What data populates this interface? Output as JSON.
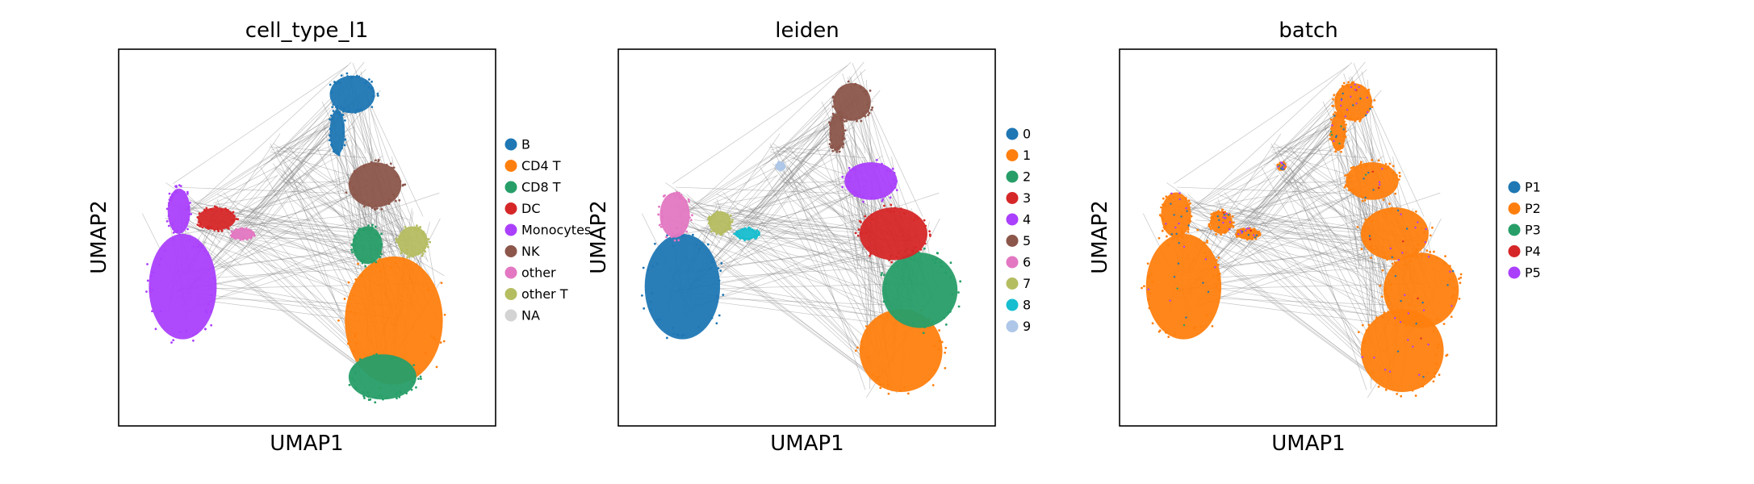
{
  "figure": {
    "panels": [
      {
        "title": "cell_type_l1",
        "xlabel": "UMAP1",
        "ylabel": "UMAP2",
        "legend": [
          {
            "label": "B",
            "color": "#1f77b4"
          },
          {
            "label": "CD4 T",
            "color": "#ff7f0e"
          },
          {
            "label": "CD8 T",
            "color": "#279e68"
          },
          {
            "label": "DC",
            "color": "#d62728"
          },
          {
            "label": "Monocytes",
            "color": "#aa40fc"
          },
          {
            "label": "NK",
            "color": "#8c564b"
          },
          {
            "label": "other",
            "color": "#e377c2"
          },
          {
            "label": "other T",
            "color": "#b5bd61"
          },
          {
            "label": "NA",
            "color": "#d3d3d3"
          }
        ]
      },
      {
        "title": "leiden",
        "xlabel": "UMAP1",
        "ylabel": "UMAP2",
        "legend": [
          {
            "label": "0",
            "color": "#1f77b4"
          },
          {
            "label": "1",
            "color": "#ff7f0e"
          },
          {
            "label": "2",
            "color": "#279e68"
          },
          {
            "label": "3",
            "color": "#d62728"
          },
          {
            "label": "4",
            "color": "#aa40fc"
          },
          {
            "label": "5",
            "color": "#8c564b"
          },
          {
            "label": "6",
            "color": "#e377c2"
          },
          {
            "label": "7",
            "color": "#b5bd61"
          },
          {
            "label": "8",
            "color": "#17becf"
          },
          {
            "label": "9",
            "color": "#aec7e8"
          }
        ]
      },
      {
        "title": "batch",
        "xlabel": "UMAP1",
        "ylabel": "UMAP2",
        "legend": [
          {
            "label": "P1",
            "color": "#1f77b4"
          },
          {
            "label": "P2",
            "color": "#ff7f0e"
          },
          {
            "label": "P3",
            "color": "#279e68"
          },
          {
            "label": "P4",
            "color": "#d62728"
          },
          {
            "label": "P5",
            "color": "#aa40fc"
          }
        ]
      }
    ]
  },
  "chart_data": [
    {
      "type": "scatter",
      "title": "cell_type_l1",
      "xlabel": "UMAP1",
      "ylabel": "UMAP2",
      "grid": false,
      "legend_position": "right",
      "note": "UMAP embedding with overlaid PAGA-style connectivity edges (gray); axes have no ticks",
      "series": [
        {
          "name": "B",
          "color": "#1f77b4",
          "clusters": [
            {
              "cx": 0.62,
              "cy": 0.88,
              "rx": 0.06,
              "ry": 0.05
            },
            {
              "cx": 0.58,
              "cy": 0.78,
              "rx": 0.02,
              "ry": 0.06
            }
          ]
        },
        {
          "name": "CD4 T",
          "color": "#ff7f0e",
          "clusters": [
            {
              "cx": 0.73,
              "cy": 0.28,
              "rx": 0.13,
              "ry": 0.17
            }
          ]
        },
        {
          "name": "CD8 T",
          "color": "#279e68",
          "clusters": [
            {
              "cx": 0.7,
              "cy": 0.13,
              "rx": 0.09,
              "ry": 0.06
            },
            {
              "cx": 0.66,
              "cy": 0.48,
              "rx": 0.04,
              "ry": 0.05
            }
          ]
        },
        {
          "name": "DC",
          "color": "#d62728",
          "clusters": [
            {
              "cx": 0.26,
              "cy": 0.55,
              "rx": 0.05,
              "ry": 0.03
            }
          ]
        },
        {
          "name": "Monocytes",
          "color": "#aa40fc",
          "clusters": [
            {
              "cx": 0.17,
              "cy": 0.37,
              "rx": 0.09,
              "ry": 0.14
            },
            {
              "cx": 0.16,
              "cy": 0.57,
              "rx": 0.03,
              "ry": 0.06
            }
          ]
        },
        {
          "name": "NK",
          "color": "#8c564b",
          "clusters": [
            {
              "cx": 0.68,
              "cy": 0.64,
              "rx": 0.07,
              "ry": 0.06
            }
          ]
        },
        {
          "name": "other",
          "color": "#e377c2",
          "clusters": [
            {
              "cx": 0.33,
              "cy": 0.51,
              "rx": 0.03,
              "ry": 0.015
            }
          ]
        },
        {
          "name": "other T",
          "color": "#b5bd61",
          "clusters": [
            {
              "cx": 0.78,
              "cy": 0.49,
              "rx": 0.04,
              "ry": 0.04
            }
          ]
        },
        {
          "name": "NA",
          "color": "#d3d3d3",
          "clusters": []
        }
      ]
    },
    {
      "type": "scatter",
      "title": "leiden",
      "xlabel": "UMAP1",
      "ylabel": "UMAP2",
      "grid": false,
      "legend_position": "right",
      "series": [
        {
          "name": "0",
          "color": "#1f77b4",
          "clusters": [
            {
              "cx": 0.17,
              "cy": 0.37,
              "rx": 0.1,
              "ry": 0.14
            }
          ]
        },
        {
          "name": "1",
          "color": "#ff7f0e",
          "clusters": [
            {
              "cx": 0.75,
              "cy": 0.2,
              "rx": 0.11,
              "ry": 0.11
            }
          ]
        },
        {
          "name": "2",
          "color": "#279e68",
          "clusters": [
            {
              "cx": 0.8,
              "cy": 0.36,
              "rx": 0.1,
              "ry": 0.1
            }
          ]
        },
        {
          "name": "3",
          "color": "#d62728",
          "clusters": [
            {
              "cx": 0.73,
              "cy": 0.51,
              "rx": 0.09,
              "ry": 0.07
            }
          ]
        },
        {
          "name": "4",
          "color": "#aa40fc",
          "clusters": [
            {
              "cx": 0.67,
              "cy": 0.65,
              "rx": 0.07,
              "ry": 0.05
            }
          ]
        },
        {
          "name": "5",
          "color": "#8c564b",
          "clusters": [
            {
              "cx": 0.62,
              "cy": 0.86,
              "rx": 0.05,
              "ry": 0.05
            },
            {
              "cx": 0.58,
              "cy": 0.78,
              "rx": 0.02,
              "ry": 0.05
            }
          ]
        },
        {
          "name": "6",
          "color": "#e377c2",
          "clusters": [
            {
              "cx": 0.15,
              "cy": 0.56,
              "rx": 0.04,
              "ry": 0.06
            }
          ]
        },
        {
          "name": "7",
          "color": "#b5bd61",
          "clusters": [
            {
              "cx": 0.27,
              "cy": 0.54,
              "rx": 0.03,
              "ry": 0.03
            }
          ]
        },
        {
          "name": "8",
          "color": "#17becf",
          "clusters": [
            {
              "cx": 0.34,
              "cy": 0.51,
              "rx": 0.03,
              "ry": 0.015
            }
          ]
        },
        {
          "name": "9",
          "color": "#aec7e8",
          "clusters": [
            {
              "cx": 0.43,
              "cy": 0.69,
              "rx": 0.01,
              "ry": 0.01
            }
          ]
        }
      ]
    },
    {
      "type": "scatter",
      "title": "batch",
      "xlabel": "UMAP1",
      "ylabel": "UMAP2",
      "grid": false,
      "legend_position": "right",
      "series": [
        {
          "name": "P1",
          "color": "#1f77b4",
          "mixing": 0.06
        },
        {
          "name": "P2",
          "color": "#ff7f0e",
          "mixing": 0.84
        },
        {
          "name": "P3",
          "color": "#279e68",
          "mixing": 0.01
        },
        {
          "name": "P4",
          "color": "#d62728",
          "mixing": 0.01
        },
        {
          "name": "P5",
          "color": "#aa40fc",
          "mixing": 0.08
        }
      ]
    }
  ]
}
